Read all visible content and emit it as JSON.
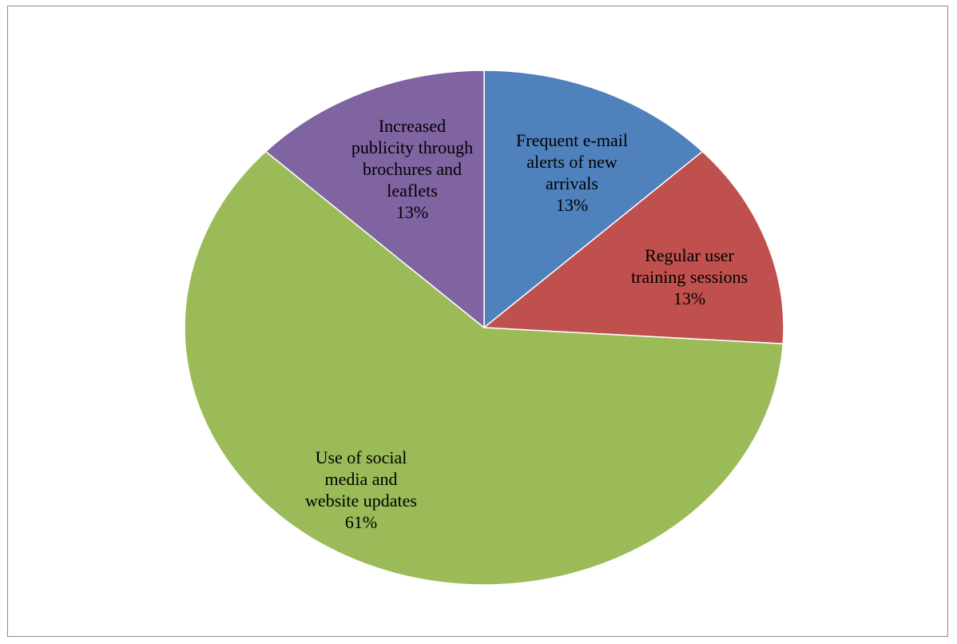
{
  "chart_data": {
    "type": "pie",
    "title": "",
    "slices": [
      {
        "label": [
          "Frequent e-mail",
          "alerts of new",
          "arrivals"
        ],
        "percent_label": "13%",
        "value": 13,
        "color": "#4F81BD"
      },
      {
        "label": [
          "Regular user",
          "training sessions"
        ],
        "percent_label": "13%",
        "value": 13,
        "color": "#C0504D"
      },
      {
        "label": [
          "Use of social",
          "media and",
          "website updates"
        ],
        "percent_label": "61%",
        "value": 61,
        "color": "#9BBB59"
      },
      {
        "label": [
          "Increased",
          "publicity through",
          "brochures and",
          "leaflets"
        ],
        "percent_label": "13%",
        "value": 13,
        "color": "#8064A2"
      }
    ],
    "start": "12 o'clock",
    "direction": "clockwise",
    "legend": "none",
    "labels": "inside slices"
  }
}
